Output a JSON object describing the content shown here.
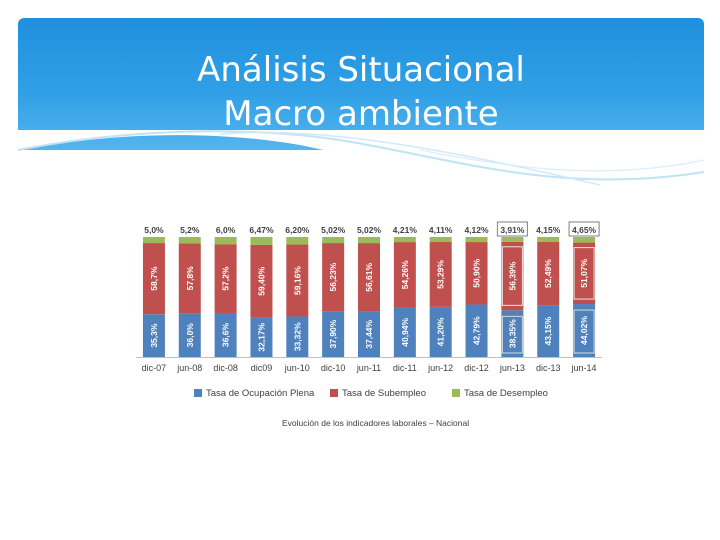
{
  "slide": {
    "title_line1": "Análisis Situacional",
    "title_line2": "Macro ambiente"
  },
  "colors": {
    "header": "#2196e0",
    "ocupacion": "#4f81bd",
    "subempleo": "#c0504d",
    "desempleo": "#9bbb59"
  },
  "chart_data": {
    "type": "bar",
    "stacked": true,
    "normalized_to_100": true,
    "categories": [
      "dic-07",
      "jun-08",
      "dic-08",
      "dic09",
      "jun-10",
      "dic-10",
      "jun-11",
      "dic-11",
      "jun-12",
      "dic-12",
      "jun-13",
      "dic-13",
      "jun-14"
    ],
    "series": [
      {
        "name": "Tasa de Ocupación Plena",
        "color": "#4f81bd",
        "values": [
          35.3,
          36.0,
          36.6,
          32.17,
          33.32,
          37.9,
          37.44,
          40.94,
          41.2,
          42.79,
          38.35,
          43.15,
          44.02
        ],
        "labels": [
          "35,3%",
          "36,0%",
          "36,6%",
          "32,17%",
          "33,32%",
          "37,90%",
          "37,44%",
          "40,94%",
          "41,20%",
          "42,79%",
          "38,35%",
          "43,15%",
          "44,02%"
        ]
      },
      {
        "name": "Tasa de Subempleo",
        "color": "#c0504d",
        "values": [
          58.7,
          57.8,
          57.2,
          59.4,
          59.16,
          56.23,
          56.61,
          54.26,
          53.29,
          50.9,
          56.39,
          52.49,
          51.07
        ],
        "labels": [
          "58,7%",
          "57,8%",
          "57,2%",
          "59,40%",
          "59,16%",
          "56,23%",
          "56,61%",
          "54,26%",
          "53,29%",
          "50,90%",
          "56,39%",
          "52,49%",
          "51,07%"
        ]
      },
      {
        "name": "Tasa de Desempleo",
        "color": "#9bbb59",
        "values": [
          5.0,
          5.2,
          6.0,
          6.47,
          6.2,
          5.02,
          5.02,
          4.21,
          4.11,
          4.12,
          3.91,
          4.15,
          4.65
        ],
        "labels": [
          "5,0%",
          "5,2%",
          "6,0%",
          "6,47%",
          "6,20%",
          "5,02%",
          "5,02%",
          "4,21%",
          "4,11%",
          "4,12%",
          "3,91%",
          "4,15%",
          "4,65%"
        ]
      }
    ],
    "legend_position": "bottom",
    "caption": "Evolución de los indicadores laborales – Nacional",
    "highlighted_categories": [
      "jun-13",
      "jun-14"
    ],
    "title": "",
    "xlabel": "",
    "ylabel": "",
    "grid": false
  }
}
